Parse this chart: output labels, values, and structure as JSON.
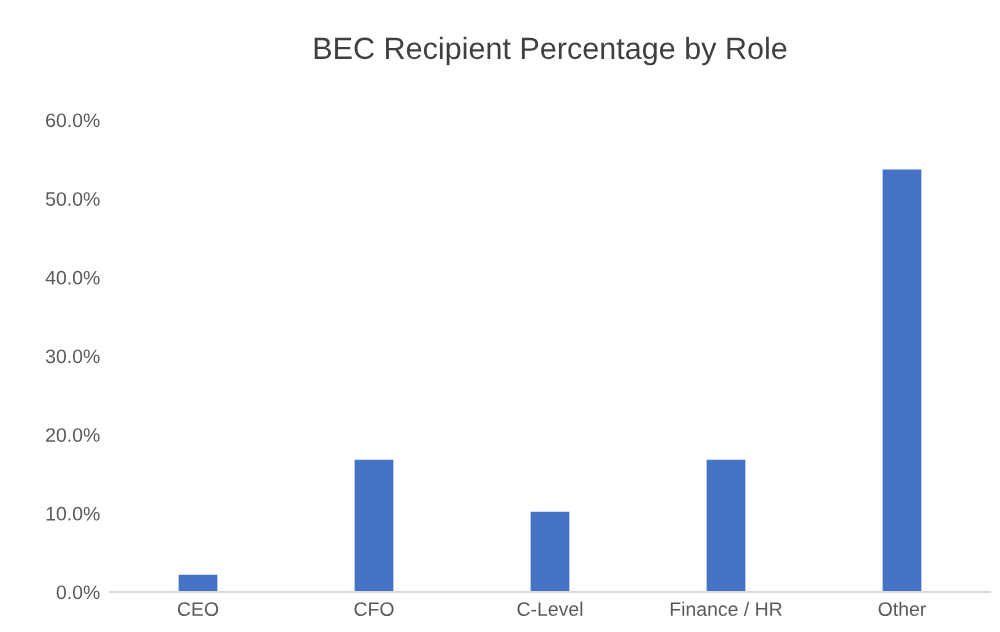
{
  "chart_data": {
    "type": "bar",
    "title": "BEC Recipient Percentage by Role",
    "categories": [
      "CEO",
      "CFO",
      "C-Level",
      "Finance / HR",
      "Other"
    ],
    "values": [
      2.2,
      16.8,
      10.2,
      16.8,
      53.7
    ],
    "color": "#4472c4",
    "ylim": [
      0,
      60
    ],
    "yticks": [
      {
        "value": 0,
        "label": "0.0%"
      },
      {
        "value": 10,
        "label": "10.0%"
      },
      {
        "value": 20,
        "label": "20.0%"
      },
      {
        "value": 30,
        "label": "30.0%"
      },
      {
        "value": 40,
        "label": "40.0%"
      },
      {
        "value": 50,
        "label": "50.0%"
      },
      {
        "value": 60,
        "label": "60.0%"
      }
    ],
    "grid": false
  }
}
